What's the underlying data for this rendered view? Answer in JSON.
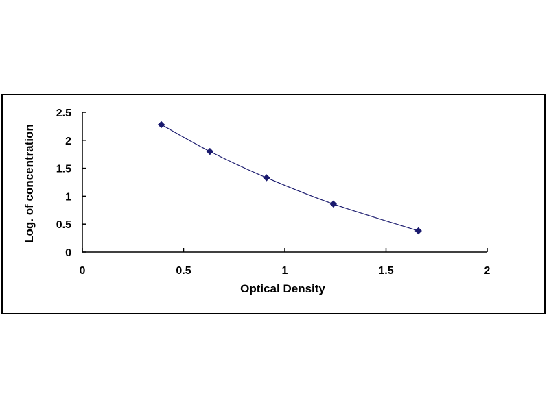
{
  "chart_data": {
    "type": "scatter",
    "title": "",
    "xlabel": "Optical Density",
    "ylabel": "Log. of concentration",
    "xlim": [
      0,
      2
    ],
    "ylim": [
      0,
      2.5
    ],
    "x_ticks": [
      "0",
      "0.5",
      "1",
      "1.5",
      "2"
    ],
    "y_ticks": [
      "0",
      "0.5",
      "1",
      "1.5",
      "2",
      "2.5"
    ],
    "grid": false,
    "legend": "none",
    "series": [
      {
        "x": [
          0.39,
          0.63,
          0.91,
          1.24,
          1.66
        ],
        "y": [
          2.28,
          1.8,
          1.33,
          0.86,
          0.38
        ],
        "marker": "diamond",
        "color": "#1a1a6e",
        "line": "smooth"
      }
    ]
  }
}
